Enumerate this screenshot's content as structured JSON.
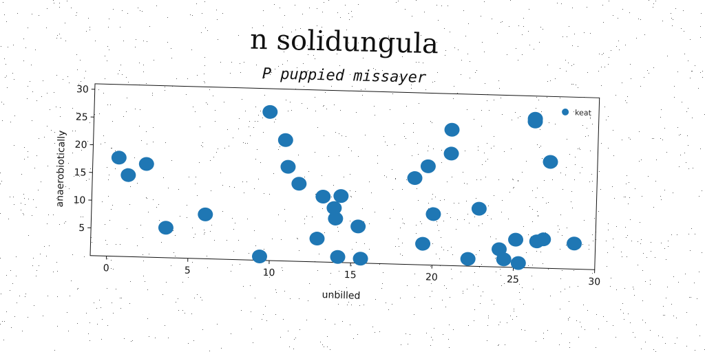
{
  "chart_data": {
    "type": "scatter",
    "title": "n solidungula",
    "subtitle": "P puppied missayer",
    "xlabel": "unbilled",
    "ylabel": "anaerobiotically",
    "xlim": [
      -1,
      30
    ],
    "ylim": [
      0,
      31
    ],
    "xticks": [
      0,
      5,
      10,
      15,
      20,
      25,
      30
    ],
    "yticks": [
      5,
      10,
      15,
      20,
      25,
      30
    ],
    "grid": false,
    "legend_position": "top-right",
    "series": [
      {
        "name": "keat",
        "color": "#1f77b4",
        "points": [
          [
            0.6,
            17.8
          ],
          [
            1.2,
            14.7
          ],
          [
            2.3,
            16.8
          ],
          [
            3.6,
            5.4
          ],
          [
            6.0,
            8.0
          ],
          [
            9.4,
            0.7
          ],
          [
            9.8,
            26.8
          ],
          [
            10.8,
            21.8
          ],
          [
            11.0,
            17.0
          ],
          [
            11.7,
            14.0
          ],
          [
            12.9,
            4.2
          ],
          [
            13.2,
            11.8
          ],
          [
            13.9,
            9.8
          ],
          [
            14.0,
            7.9
          ],
          [
            14.2,
            1.0
          ],
          [
            14.3,
            12.0
          ],
          [
            15.4,
            6.6
          ],
          [
            15.6,
            0.8
          ],
          [
            18.8,
            15.6
          ],
          [
            19.4,
            3.8
          ],
          [
            19.6,
            17.8
          ],
          [
            20.0,
            9.2
          ],
          [
            21.0,
            24.5
          ],
          [
            21.0,
            20.2
          ],
          [
            22.2,
            1.3
          ],
          [
            22.8,
            10.4
          ],
          [
            24.1,
            3.2
          ],
          [
            24.4,
            1.4
          ],
          [
            25.1,
            5.0
          ],
          [
            25.3,
            0.8
          ],
          [
            26.1,
            26.4
          ],
          [
            26.1,
            26.9
          ],
          [
            26.4,
            4.8
          ],
          [
            26.8,
            5.2
          ],
          [
            27.1,
            19.2
          ],
          [
            28.7,
            4.6
          ]
        ]
      }
    ]
  }
}
